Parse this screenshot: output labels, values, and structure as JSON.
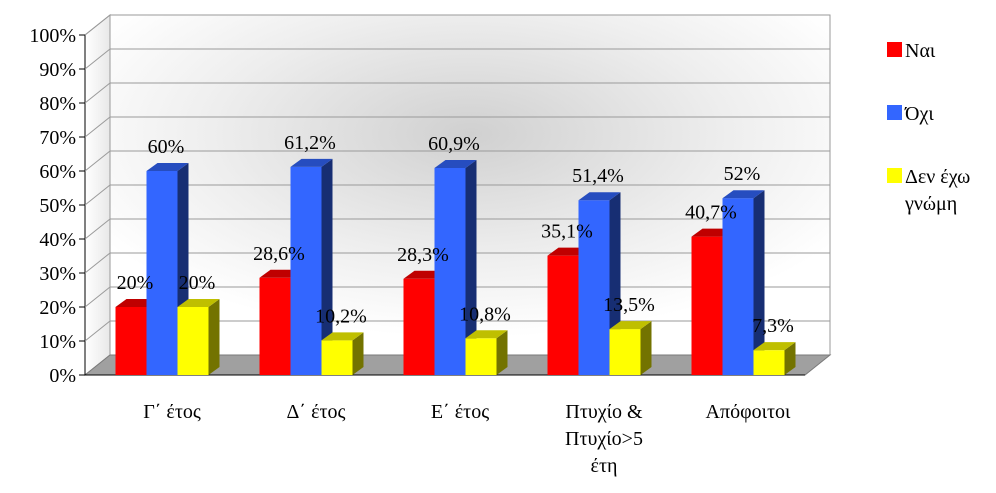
{
  "chart_data": {
    "type": "bar",
    "title": "",
    "xlabel": "",
    "ylabel": "",
    "ylim": [
      0,
      100
    ],
    "y_tick_format": "%",
    "y_ticks": [
      "0%",
      "10%",
      "20%",
      "30%",
      "40%",
      "50%",
      "60%",
      "70%",
      "80%",
      "90%",
      "100%"
    ],
    "grid": true,
    "legend_position": "right",
    "categories": [
      [
        "Γ΄ έτος"
      ],
      [
        "Δ΄ έτος"
      ],
      [
        "Ε΄ έτος"
      ],
      [
        "Πτυχίο &",
        "Πτυχίο>5",
        "έτη"
      ],
      [
        "Απόφοιτοι"
      ]
    ],
    "series": [
      {
        "name": "Ναι",
        "color": "#ff0000",
        "values": [
          20,
          28.6,
          28.3,
          35.1,
          40.7
        ],
        "labels": [
          "20%",
          "28,6%",
          "28,3%",
          "35,1%",
          "40,7%"
        ]
      },
      {
        "name": "Όχι",
        "color": "#3366ff",
        "values": [
          60,
          61.2,
          60.9,
          51.4,
          52
        ],
        "labels": [
          "60%",
          "61,2%",
          "60,9%",
          "51,4%",
          "52%"
        ]
      },
      {
        "name": "Δεν έχω γνώμη",
        "color": "#ffff00",
        "values": [
          20,
          10.2,
          10.8,
          13.5,
          7.3
        ],
        "labels": [
          "20%",
          "10,2%",
          "10,8%",
          "13,5%",
          "7,3%"
        ]
      }
    ],
    "legend_lines": [
      [
        "Ναι"
      ],
      [
        "Όχι"
      ],
      [
        "Δεν έχω",
        "γνώμη"
      ]
    ]
  }
}
